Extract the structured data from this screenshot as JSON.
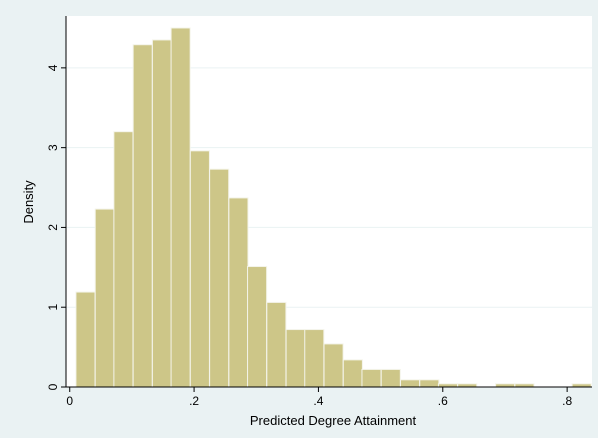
{
  "chart_data": {
    "type": "histogram",
    "title": "",
    "xlabel": "Predicted Degree Attainment",
    "ylabel": "Density",
    "bin_width": 0.0307,
    "bins": [
      {
        "start": 0.01,
        "density": 1.19
      },
      {
        "start": 0.041,
        "density": 2.23
      },
      {
        "start": 0.071,
        "density": 3.2
      },
      {
        "start": 0.102,
        "density": 4.29
      },
      {
        "start": 0.133,
        "density": 4.35
      },
      {
        "start": 0.163,
        "density": 4.5
      },
      {
        "start": 0.194,
        "density": 2.96
      },
      {
        "start": 0.225,
        "density": 2.73
      },
      {
        "start": 0.256,
        "density": 2.37
      },
      {
        "start": 0.286,
        "density": 1.51
      },
      {
        "start": 0.317,
        "density": 1.06
      },
      {
        "start": 0.348,
        "density": 0.72
      },
      {
        "start": 0.378,
        "density": 0.72
      },
      {
        "start": 0.409,
        "density": 0.54
      },
      {
        "start": 0.44,
        "density": 0.34
      },
      {
        "start": 0.47,
        "density": 0.22
      },
      {
        "start": 0.501,
        "density": 0.22
      },
      {
        "start": 0.532,
        "density": 0.09
      },
      {
        "start": 0.563,
        "density": 0.09
      },
      {
        "start": 0.593,
        "density": 0.04
      },
      {
        "start": 0.624,
        "density": 0.04
      },
      {
        "start": 0.685,
        "density": 0.04
      },
      {
        "start": 0.716,
        "density": 0.04
      },
      {
        "start": 0.808,
        "density": 0.04
      }
    ],
    "xlim": [
      -0.006,
      0.84
    ],
    "ylim": [
      0,
      4.65
    ],
    "xticks": [
      {
        "value": 0,
        "label": "0"
      },
      {
        "value": 0.2,
        "label": ".2"
      },
      {
        "value": 0.4,
        "label": ".4"
      },
      {
        "value": 0.6,
        "label": ".6"
      },
      {
        "value": 0.8,
        "label": ".8"
      }
    ],
    "yticks": [
      {
        "value": 0,
        "label": "0"
      },
      {
        "value": 1,
        "label": "1"
      },
      {
        "value": 2,
        "label": "2"
      },
      {
        "value": 3,
        "label": "3"
      },
      {
        "value": 4,
        "label": "4"
      }
    ],
    "grid": true,
    "colors": {
      "bar_fill": "#cdc688",
      "bar_edge": "#f4f4ea",
      "plot_background": "#ffffff",
      "page_background": "#eaf2f3"
    }
  }
}
